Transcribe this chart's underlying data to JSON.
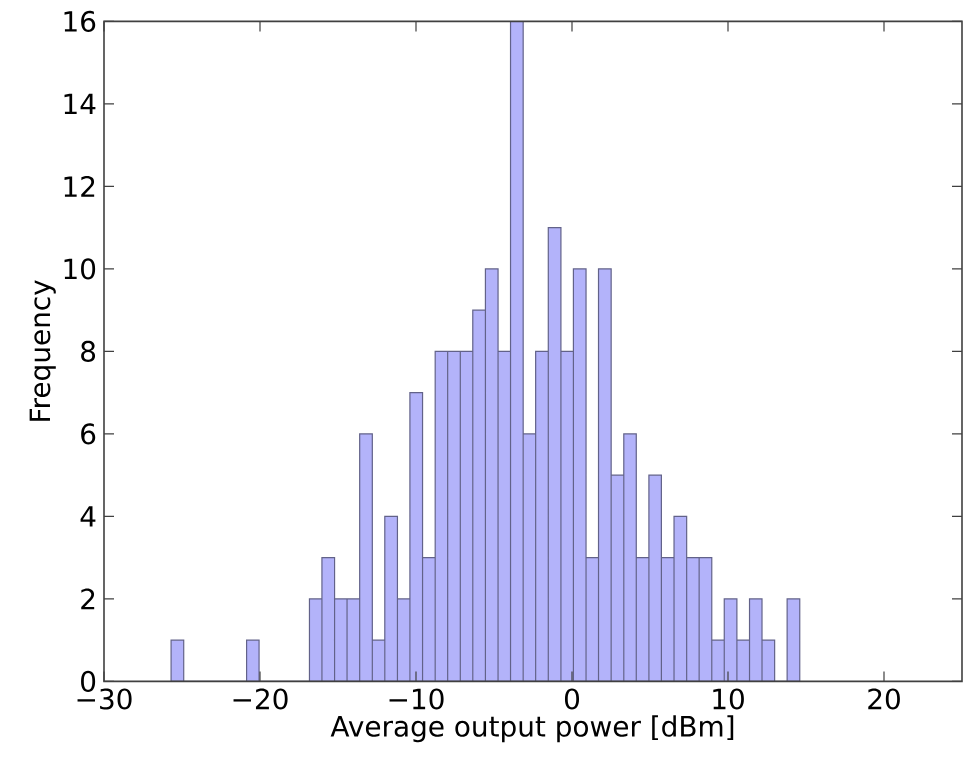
{
  "chart_data": {
    "type": "histogram",
    "xlabel": "Average output power [dBm]",
    "ylabel": "Frequency",
    "bins": [
      -25.7,
      -24.89,
      -24.09,
      -23.28,
      -22.48,
      -21.67,
      -20.86,
      -20.06,
      -19.25,
      -18.45,
      -17.64,
      -16.83,
      -16.03,
      -15.22,
      -14.42,
      -13.61,
      -12.8,
      -12.0,
      -11.19,
      -10.39,
      -9.58,
      -8.77,
      -7.97,
      -7.16,
      -6.36,
      -5.55,
      -4.74,
      -3.94,
      -3.13,
      -2.33,
      -1.52,
      -0.71,
      0.09,
      0.9,
      1.7,
      2.51,
      3.32,
      4.12,
      4.93,
      5.73,
      6.54,
      7.35,
      8.15,
      8.96,
      9.76,
      10.57,
      11.38,
      12.18,
      12.99,
      13.79,
      14.6
    ],
    "values": [
      1,
      0,
      0,
      0,
      0,
      0,
      1,
      0,
      0,
      0,
      0,
      2,
      3,
      2,
      2,
      6,
      1,
      4,
      2,
      7,
      3,
      8,
      8,
      8,
      9,
      10,
      8,
      16,
      6,
      8,
      11,
      8,
      10,
      3,
      10,
      5,
      6,
      3,
      5,
      3,
      4,
      3,
      3,
      1,
      2,
      1,
      2,
      1,
      0,
      2
    ],
    "color": "#b3b3fa",
    "xlim": [
      -30,
      25
    ],
    "xticks": [
      {
        "value": -30,
        "label": "−30"
      },
      {
        "value": -20,
        "label": "−20"
      },
      {
        "value": -10,
        "label": "−10"
      },
      0,
      10,
      20
    ],
    "ylim": [
      0,
      16
    ],
    "yticks": [
      0,
      2,
      4,
      6,
      8,
      10,
      12,
      14,
      16
    ]
  }
}
